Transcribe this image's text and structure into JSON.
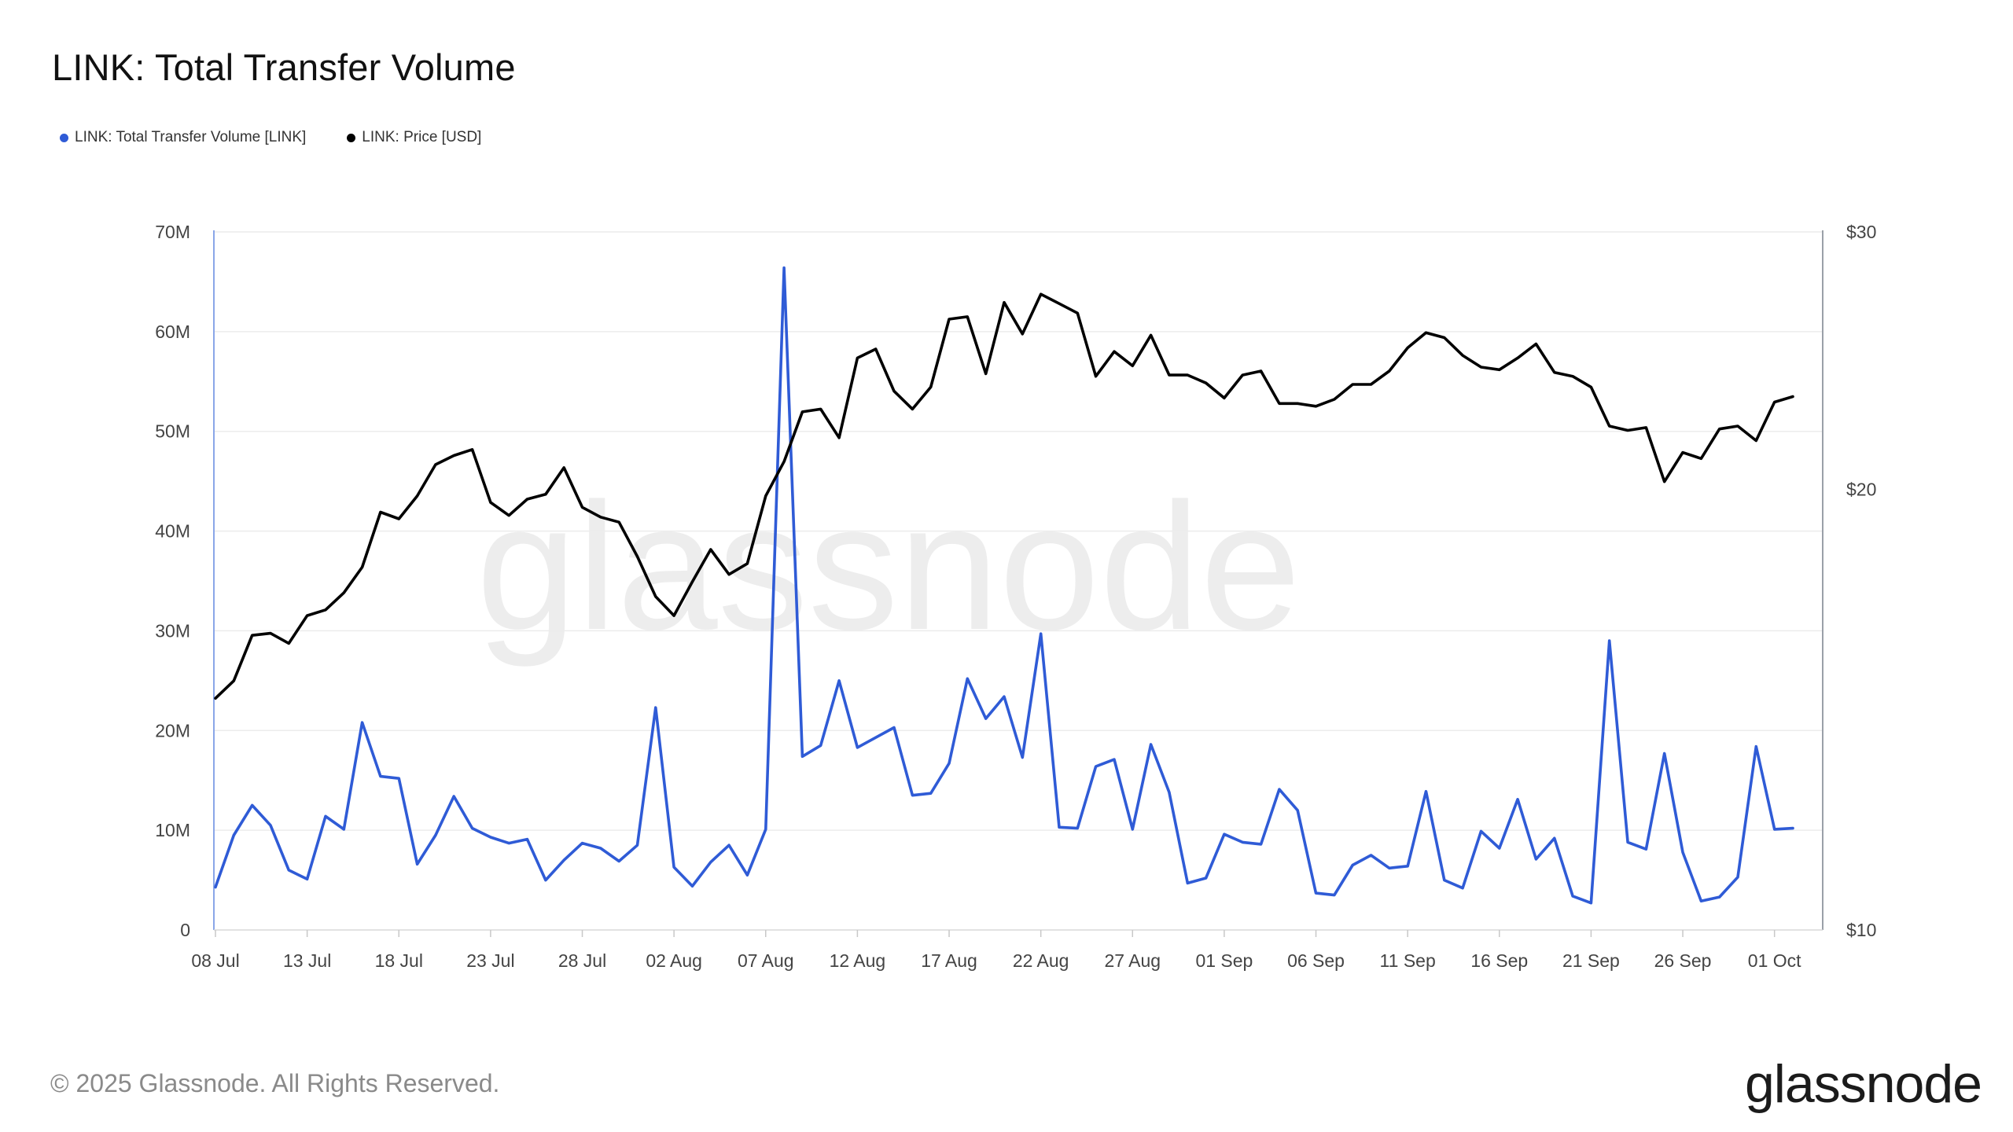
{
  "page": {
    "title": "LINK: Total Transfer Volume",
    "copyright": "© 2025 Glassnode. All Rights Reserved.",
    "logo_text": "glassnode",
    "watermark_text": "glassnode"
  },
  "colors": {
    "volume": "#2f5bd6",
    "price": "#000000",
    "grid": "#ececec",
    "left_axis_line": "#8aa6e8",
    "right_axis_line": "#9aa0a8"
  },
  "chart_data": {
    "type": "line",
    "title": "LINK: Total Transfer Volume",
    "x_tick_labels": [
      "08 Jul",
      "13 Jul",
      "18 Jul",
      "23 Jul",
      "28 Jul",
      "02 Aug",
      "07 Aug",
      "12 Aug",
      "17 Aug",
      "22 Aug",
      "27 Aug",
      "01 Sep",
      "06 Sep",
      "11 Sep",
      "16 Sep",
      "21 Sep",
      "26 Sep",
      "01 Oct"
    ],
    "x_start_label": "08 Jul",
    "x_days": 87,
    "y_left": {
      "ticks": [
        "0",
        "10M",
        "20M",
        "30M",
        "40M",
        "50M",
        "60M",
        "70M"
      ],
      "tick_values": [
        0,
        10,
        20,
        30,
        40,
        50,
        60,
        70
      ],
      "range": [
        0,
        70
      ],
      "unit": "M"
    },
    "y_right": {
      "ticks": [
        "$10",
        "$20",
        "$30"
      ],
      "tick_values": [
        10,
        20,
        30
      ],
      "range": [
        10,
        30
      ],
      "scale": "log"
    },
    "grid": true,
    "legend_position": "top-left",
    "series": [
      {
        "name": "LINK: Total Transfer Volume [LINK]",
        "axis": "left",
        "color": "#2f5bd6",
        "values": [
          4.3,
          9.5,
          12.5,
          10.5,
          6.0,
          5.1,
          11.4,
          10.1,
          20.8,
          15.4,
          15.2,
          6.6,
          9.5,
          13.4,
          10.2,
          9.3,
          8.7,
          9.1,
          5.0,
          7.0,
          8.7,
          8.2,
          6.9,
          8.5,
          22.3,
          6.3,
          4.4,
          6.8,
          8.5,
          5.5,
          10.1,
          66.4,
          17.4,
          18.5,
          25.0,
          18.3,
          19.3,
          20.3,
          13.5,
          13.7,
          16.7,
          25.2,
          21.2,
          23.4,
          17.3,
          29.7,
          10.3,
          10.2,
          16.4,
          17.1,
          10.1,
          18.6,
          13.8,
          4.7,
          5.2,
          9.6,
          8.8,
          8.6,
          14.1,
          12.0,
          3.7,
          3.5,
          6.5,
          7.5,
          6.2,
          6.4,
          13.9,
          5.0,
          4.2,
          9.9,
          8.2,
          13.1,
          7.1,
          9.2,
          3.4,
          2.7,
          29.0,
          8.8,
          8.1,
          17.7,
          7.8,
          2.9,
          3.3,
          5.3,
          18.4,
          10.1,
          10.2
        ]
      },
      {
        "name": "LINK: Price [USD]",
        "axis": "right",
        "color": "#000000",
        "values": [
          14.4,
          14.8,
          15.9,
          15.95,
          15.7,
          16.4,
          16.55,
          17.0,
          17.7,
          19.3,
          19.1,
          19.8,
          20.8,
          21.1,
          21.3,
          19.6,
          19.2,
          19.7,
          19.85,
          20.7,
          19.45,
          19.15,
          19.0,
          18.0,
          16.9,
          16.4,
          17.3,
          18.2,
          17.5,
          17.8,
          19.8,
          20.9,
          22.6,
          22.7,
          21.7,
          24.6,
          24.95,
          23.35,
          22.7,
          23.5,
          26.15,
          26.25,
          24.0,
          26.85,
          25.55,
          27.2,
          26.8,
          26.4,
          23.9,
          24.85,
          24.3,
          25.5,
          23.95,
          23.95,
          23.65,
          23.1,
          23.95,
          24.1,
          22.9,
          22.9,
          22.8,
          23.05,
          23.6,
          23.6,
          24.1,
          25.0,
          25.6,
          25.4,
          24.7,
          24.25,
          24.15,
          24.6,
          25.15,
          24.05,
          23.9,
          23.5,
          22.1,
          21.95,
          22.05,
          20.25,
          21.2,
          21.0,
          22.0,
          22.1,
          21.6,
          22.95,
          23.15
        ]
      }
    ]
  }
}
